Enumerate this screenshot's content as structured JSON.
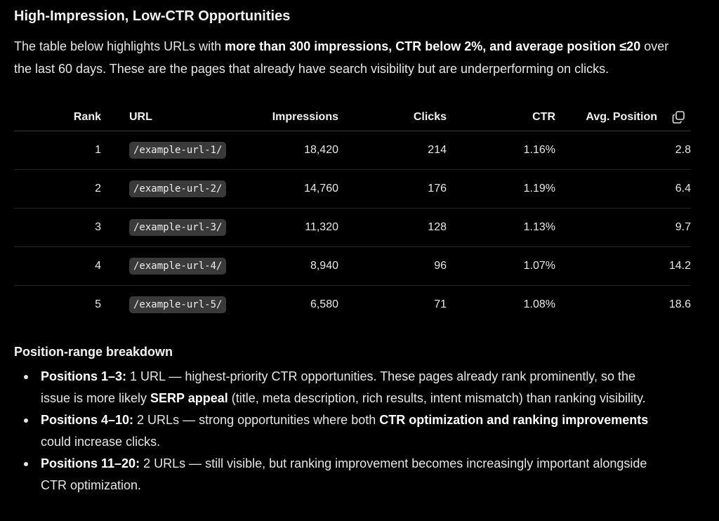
{
  "heading": "High-Impression, Low-CTR Opportunities",
  "intro": {
    "part1": "The table below highlights URLs with ",
    "bold": "more than 300 impressions, CTR below 2%, and average position ≤20",
    "part2": " over the last 60 days. These are the pages that already have search visibility but are underperforming on clicks."
  },
  "table": {
    "columns": [
      "Rank",
      "URL",
      "Impressions",
      "Clicks",
      "CTR",
      "Avg. Position"
    ],
    "copy_icon": "copy-icon",
    "rows": [
      {
        "rank": "1",
        "url": "/example-url-1/",
        "impressions": "18,420",
        "clicks": "214",
        "ctr": "1.16%",
        "position": "2.8"
      },
      {
        "rank": "2",
        "url": "/example-url-2/",
        "impressions": "14,760",
        "clicks": "176",
        "ctr": "1.19%",
        "position": "6.4"
      },
      {
        "rank": "3",
        "url": "/example-url-3/",
        "impressions": "11,320",
        "clicks": "128",
        "ctr": "1.13%",
        "position": "9.7"
      },
      {
        "rank": "4",
        "url": "/example-url-4/",
        "impressions": "8,940",
        "clicks": "96",
        "ctr": "1.07%",
        "position": "14.2"
      },
      {
        "rank": "5",
        "url": "/example-url-5/",
        "impressions": "6,580",
        "clicks": "71",
        "ctr": "1.08%",
        "position": "18.6"
      }
    ]
  },
  "breakdown": {
    "title": "Position-range breakdown",
    "items": [
      {
        "label": "Positions 1–3:",
        "text1": " 1 URL — highest-priority CTR opportunities. These pages already rank prominently, so the issue is more likely ",
        "bold2": "SERP appeal",
        "text2": " (title, meta description, rich results, intent mismatch) than ranking visibility."
      },
      {
        "label": "Positions 4–10:",
        "text1": " 2 URLs — strong opportunities where both ",
        "bold2": "CTR optimization and ranking improvements",
        "text2": " could increase clicks."
      },
      {
        "label": "Positions 11–20:",
        "text1": " 2 URLs — still visible, but ranking improvement becomes increasingly important alongside CTR optimization.",
        "bold2": "",
        "text2": ""
      }
    ]
  },
  "colors": {
    "background": "#000000",
    "text": "#e6e6e6",
    "code_bg": "#3a3a3a"
  }
}
